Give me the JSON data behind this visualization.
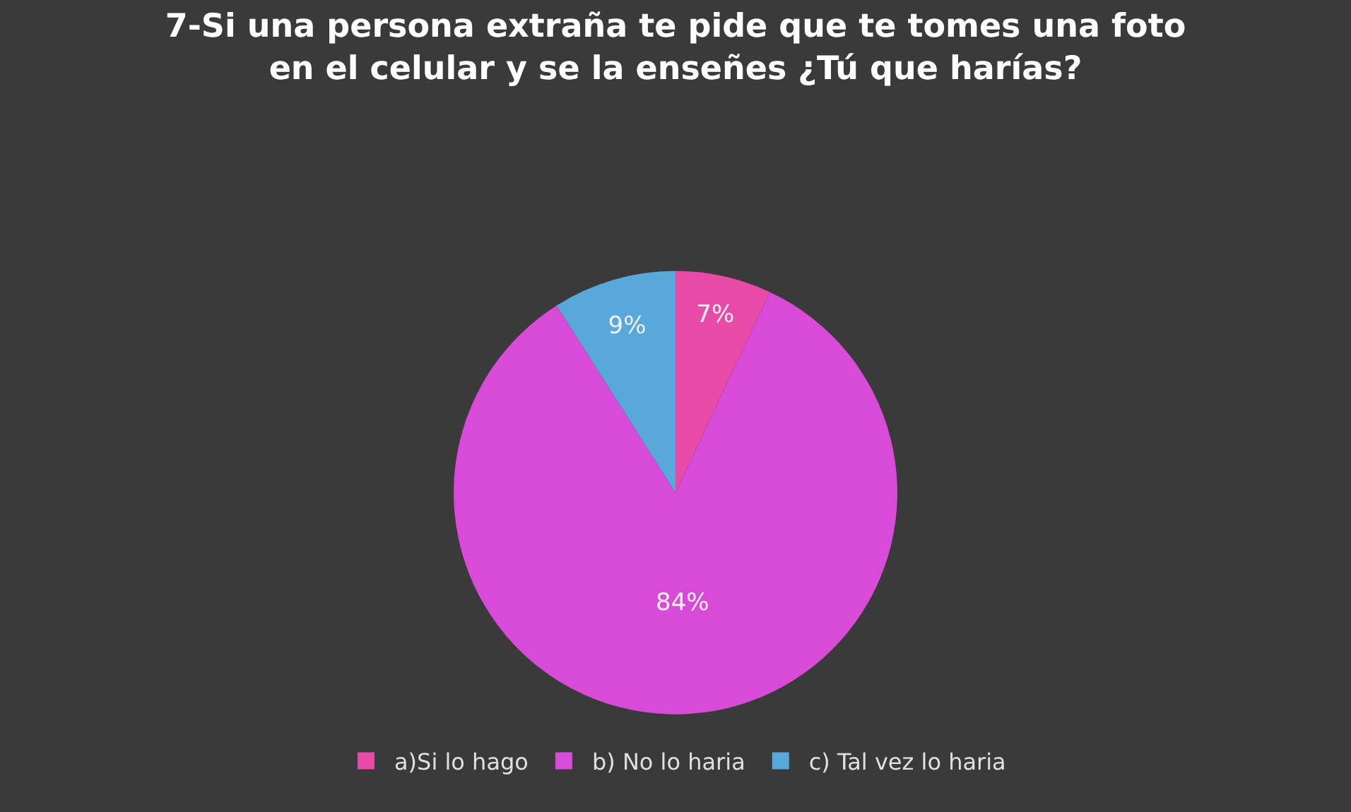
{
  "chart_data": {
    "type": "pie",
    "title": "7-Si una persona extraña te pide que te tomes una foto\nen el celular y se la enseñes ¿Tú que harías?",
    "categories": [
      "a)Si lo hago",
      "b) No lo haria",
      "c) Tal vez lo haria"
    ],
    "values": [
      7,
      84,
      9
    ],
    "colors": [
      "#e84aa8",
      "#d84ad8",
      "#58a8dc"
    ],
    "value_labels": [
      "7%",
      "84%",
      "9%"
    ],
    "legend": "bottom"
  }
}
